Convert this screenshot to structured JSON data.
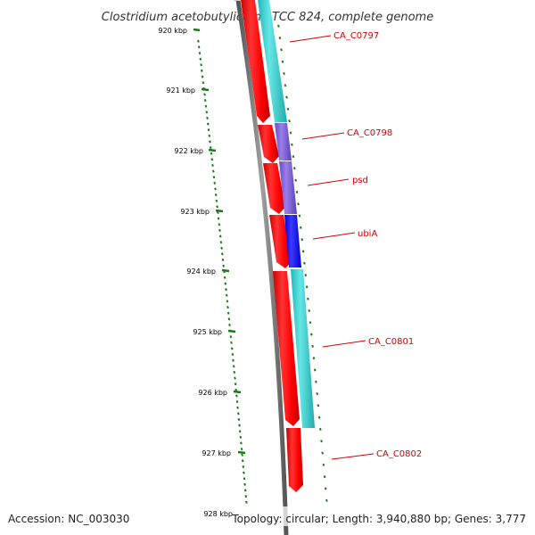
{
  "title": "Clostridium acetobutylicum ATCC 824, complete genome",
  "accession": "Accession: NC_003030",
  "summary": "Topology: circular; Length: 3,940,880 bp; Genes: 3,777",
  "colors": {
    "background": "#ffffff",
    "backbone": "#777777",
    "cds_forward": "#ff0000",
    "gene_cyan": "#33cccc",
    "gene_purple": "#7a5bd6",
    "gene_blue": "#0a00ff",
    "tick": "#1a7a1a",
    "gene_label": "#d40000"
  },
  "scale": {
    "unit": "kbp",
    "ticks": [
      "920 kbp",
      "921 kbp",
      "922 kbp",
      "923 kbp",
      "924 kbp",
      "925 kbp",
      "926 kbp",
      "927 kbp",
      "928 kbp"
    ]
  },
  "genes": [
    {
      "label": "CA_C0797",
      "color": "cyan"
    },
    {
      "label": "CA_C0798",
      "color": "purple"
    },
    {
      "label": "psd",
      "color": "purple"
    },
    {
      "label": "ubiA",
      "color": "blue"
    },
    {
      "label": "CA_C0801",
      "color": "cyan"
    },
    {
      "label": "CA_C0802",
      "color": "none"
    }
  ]
}
